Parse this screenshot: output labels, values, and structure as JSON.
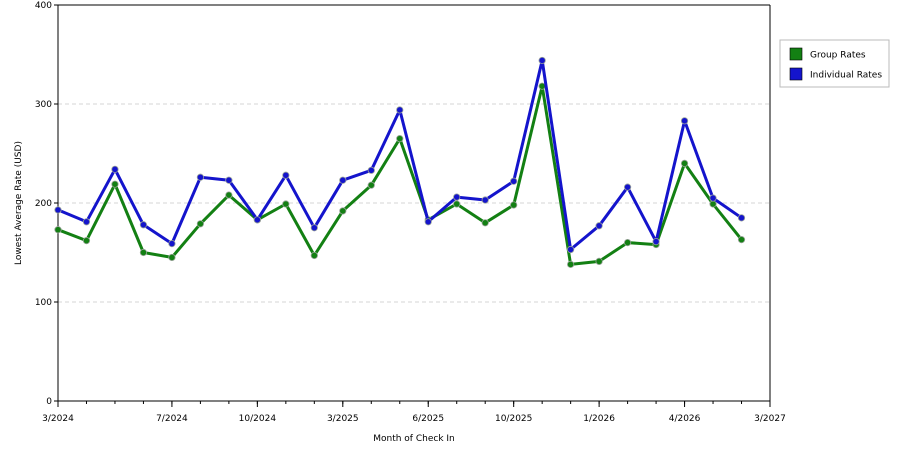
{
  "chart_data": {
    "type": "line",
    "title": "",
    "xlabel": "Month of Check In",
    "ylabel": "Lowest Average Rate (USD)",
    "ylim": [
      0,
      400
    ],
    "yticks": [
      "0",
      "100",
      "200",
      "300",
      "400"
    ],
    "xtick_labels": [
      "3/2024",
      "7/2024",
      "10/2024",
      "3/2025",
      "6/2025",
      "10/2025",
      "1/2026",
      "4/2026",
      "3/2027"
    ],
    "x": [
      "3/2024",
      "4/2024",
      "5/2024",
      "6/2024",
      "7/2024",
      "8/2024",
      "9/2024",
      "10/2024",
      "11/2024",
      "12/2024",
      "3/2025",
      "4/2025",
      "5/2025",
      "6/2025",
      "7/2025",
      "8/2025",
      "10/2025",
      "11/2025",
      "12/2025",
      "1/2026",
      "2/2026",
      "3/2026",
      "4/2026",
      "5/2026",
      "6/2026",
      "3/2027"
    ],
    "grid": "horizontal dashed",
    "legend_position": "right",
    "series": [
      {
        "name": "Group Rates",
        "color": "#138013",
        "values": [
          173,
          162,
          219,
          150,
          145,
          179,
          208,
          183,
          199,
          147,
          192,
          218,
          265,
          183,
          199,
          180,
          198,
          318,
          138,
          141,
          160,
          158,
          240,
          199,
          163,
          null
        ]
      },
      {
        "name": "Individual Rates",
        "color": "#1414cc",
        "values": [
          193,
          181,
          234,
          178,
          159,
          226,
          223,
          183,
          228,
          175,
          223,
          233,
          294,
          181,
          206,
          203,
          222,
          344,
          153,
          177,
          216,
          161,
          283,
          205,
          185,
          null
        ]
      }
    ]
  }
}
